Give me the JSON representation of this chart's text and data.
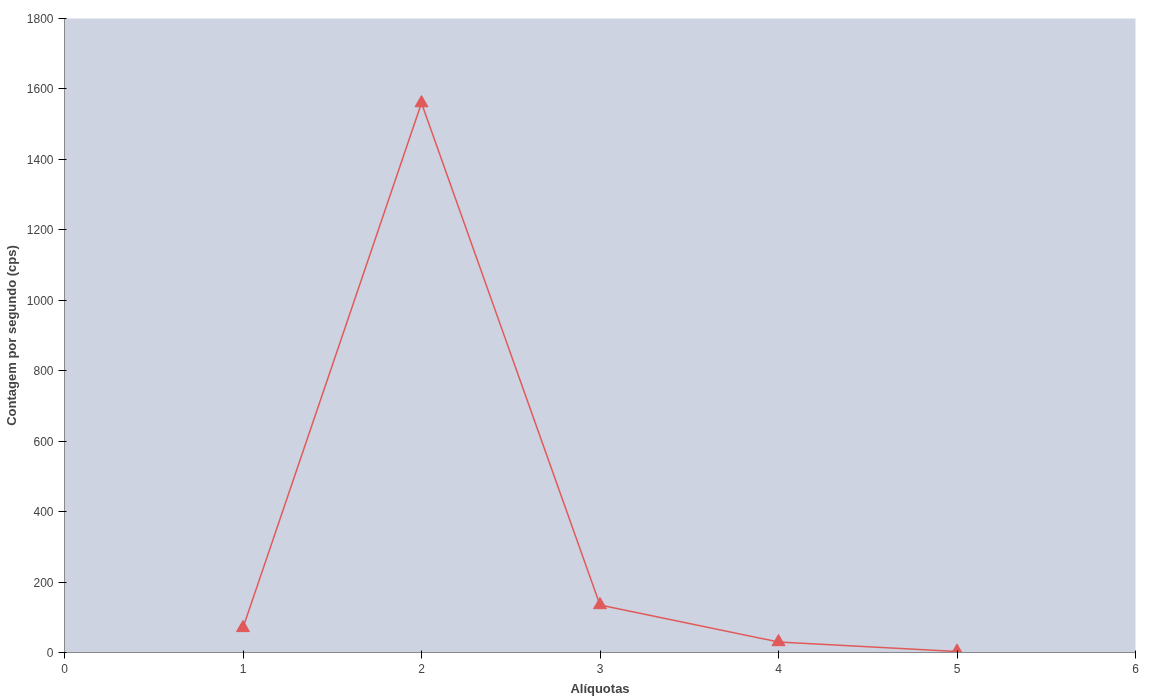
{
  "chart_data": {
    "type": "line",
    "xlabel": "Alíquotas",
    "ylabel": "Contagem por segundo (cps)",
    "x": [
      1,
      2,
      3,
      4,
      5
    ],
    "series": [
      {
        "color": "#e05a5a",
        "values": [
          70,
          1560,
          135,
          30,
          3
        ]
      }
    ],
    "xlim": [
      0,
      6
    ],
    "xticks": [
      0,
      1,
      2,
      3,
      4,
      5,
      6
    ],
    "ylim": [
      0,
      1800
    ],
    "yticks": [
      0,
      200,
      400,
      600,
      800,
      1000,
      1200,
      1400,
      1600,
      1800
    ],
    "marker": "triangle",
    "line_style": "solid"
  }
}
